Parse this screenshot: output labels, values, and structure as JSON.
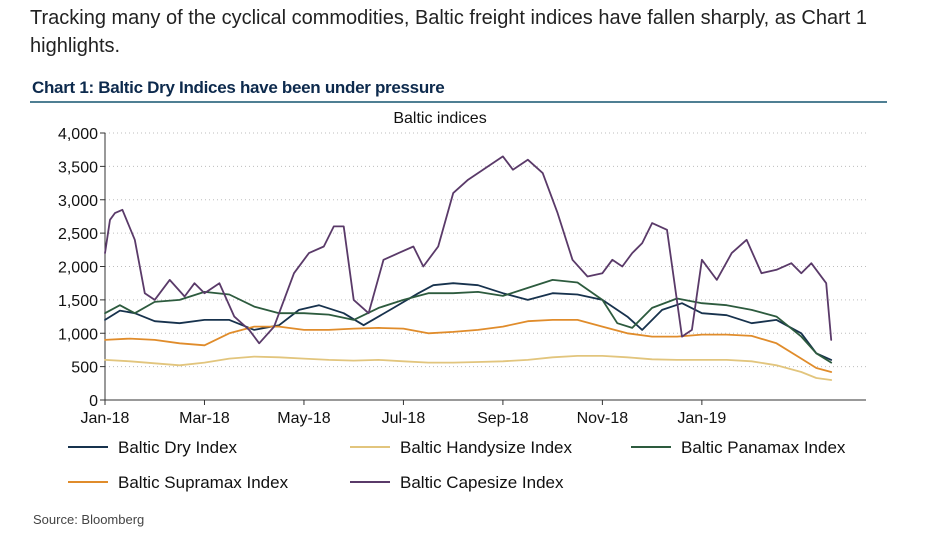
{
  "intro_text": "Tracking many of the cyclical commodities, Baltic freight indices have fallen sharply, as Chart 1 highlights.",
  "chart_heading": "Chart 1: Baltic Dry Indices have been under pressure",
  "source": "Source:  Bloomberg",
  "chart_data": {
    "type": "line",
    "title": "Baltic indices",
    "xlabel": "",
    "ylabel": "",
    "ylim": [
      0,
      4000
    ],
    "yticks": [
      0,
      500,
      1000,
      1500,
      2000,
      2500,
      3000,
      3500,
      4000
    ],
    "ytick_labels": [
      "0",
      "500",
      "1,000",
      "1,500",
      "2,000",
      "2,500",
      "3,000",
      "3,500",
      "4,000"
    ],
    "xlim": [
      0,
      15.3
    ],
    "xticks": [
      0,
      2,
      4,
      6,
      8,
      10,
      12
    ],
    "xtick_labels": [
      "Jan-18",
      "Mar-18",
      "May-18",
      "Jul-18",
      "Sep-18",
      "Nov-18",
      "Jan-19"
    ],
    "grid": "horizontal-dotted",
    "legend_position": "bottom",
    "series": [
      {
        "name": "Baltic Dry Index",
        "color": "#17324d",
        "x": [
          0,
          0.3,
          0.6,
          1.0,
          1.5,
          2.0,
          2.5,
          3.0,
          3.5,
          3.9,
          4.3,
          4.8,
          5.2,
          5.8,
          6.3,
          6.6,
          7.0,
          7.5,
          8.0,
          8.5,
          9.0,
          9.5,
          10.0,
          10.5,
          10.8,
          11.2,
          11.6,
          12.0,
          12.5,
          13.0,
          13.5,
          14.0,
          14.3,
          14.6
        ],
        "values": [
          1200,
          1340,
          1300,
          1180,
          1150,
          1200,
          1200,
          1050,
          1120,
          1350,
          1420,
          1300,
          1120,
          1380,
          1600,
          1720,
          1750,
          1720,
          1600,
          1500,
          1600,
          1580,
          1500,
          1250,
          1050,
          1350,
          1450,
          1300,
          1270,
          1150,
          1200,
          1000,
          700,
          600
        ]
      },
      {
        "name": "Baltic Handysize Index",
        "color": "#e2c57d",
        "x": [
          0,
          0.5,
          1.0,
          1.5,
          2.0,
          2.5,
          3.0,
          3.5,
          4.0,
          4.5,
          5.0,
          5.5,
          6.0,
          6.5,
          7.0,
          7.5,
          8.0,
          8.5,
          9.0,
          9.5,
          10.0,
          10.5,
          11.0,
          11.5,
          12.0,
          12.5,
          13.0,
          13.5,
          14.0,
          14.3,
          14.6
        ],
        "values": [
          600,
          580,
          550,
          520,
          560,
          620,
          650,
          640,
          620,
          600,
          590,
          600,
          580,
          560,
          560,
          570,
          580,
          600,
          640,
          660,
          660,
          640,
          610,
          600,
          600,
          600,
          580,
          520,
          420,
          330,
          300
        ]
      },
      {
        "name": "Baltic Panamax Index",
        "color": "#2d5b3e",
        "x": [
          0,
          0.3,
          0.6,
          1.0,
          1.5,
          2.0,
          2.5,
          3.0,
          3.5,
          4.0,
          4.5,
          5.0,
          5.5,
          6.0,
          6.5,
          7.0,
          7.5,
          8.0,
          8.5,
          9.0,
          9.5,
          10.0,
          10.3,
          10.6,
          11.0,
          11.5,
          12.0,
          12.5,
          13.0,
          13.5,
          14.0,
          14.3,
          14.6
        ],
        "values": [
          1300,
          1420,
          1300,
          1470,
          1500,
          1620,
          1580,
          1400,
          1300,
          1300,
          1280,
          1200,
          1380,
          1500,
          1600,
          1600,
          1620,
          1560,
          1680,
          1800,
          1760,
          1500,
          1150,
          1080,
          1380,
          1520,
          1450,
          1420,
          1350,
          1250,
          950,
          700,
          560
        ]
      },
      {
        "name": "Baltic Supramax Index",
        "color": "#e08c2b",
        "x": [
          0,
          0.5,
          1.0,
          1.5,
          2.0,
          2.5,
          3.0,
          3.5,
          4.0,
          4.5,
          5.0,
          5.5,
          6.0,
          6.5,
          7.0,
          7.5,
          8.0,
          8.5,
          9.0,
          9.5,
          10.0,
          10.5,
          11.0,
          11.5,
          12.0,
          12.5,
          13.0,
          13.5,
          14.0,
          14.3,
          14.6
        ],
        "values": [
          900,
          920,
          900,
          850,
          820,
          1000,
          1100,
          1100,
          1050,
          1050,
          1070,
          1080,
          1070,
          1000,
          1020,
          1050,
          1100,
          1180,
          1200,
          1200,
          1100,
          1000,
          950,
          950,
          980,
          980,
          960,
          850,
          620,
          480,
          420
        ]
      },
      {
        "name": "Baltic Capesize Index",
        "color": "#5a3a69",
        "x": [
          0,
          0.1,
          0.2,
          0.35,
          0.6,
          0.8,
          1.0,
          1.3,
          1.6,
          1.8,
          2.0,
          2.3,
          2.6,
          2.9,
          3.1,
          3.4,
          3.8,
          4.1,
          4.4,
          4.6,
          4.8,
          5.0,
          5.3,
          5.6,
          5.9,
          6.2,
          6.4,
          6.7,
          7.0,
          7.3,
          7.6,
          8.0,
          8.2,
          8.5,
          8.8,
          9.1,
          9.4,
          9.7,
          10.0,
          10.2,
          10.4,
          10.6,
          10.8,
          11.0,
          11.3,
          11.6,
          11.8,
          12.0,
          12.3,
          12.6,
          12.9,
          13.2,
          13.5,
          13.8,
          14.0,
          14.2,
          14.5,
          14.6
        ],
        "values": [
          2200,
          2700,
          2800,
          2850,
          2400,
          1600,
          1500,
          1800,
          1550,
          1750,
          1600,
          1750,
          1250,
          1050,
          850,
          1100,
          1900,
          2200,
          2300,
          2600,
          2600,
          1500,
          1300,
          2100,
          2200,
          2300,
          2000,
          2300,
          3100,
          3300,
          3450,
          3650,
          3450,
          3600,
          3400,
          2800,
          2100,
          1850,
          1900,
          2100,
          2000,
          2200,
          2350,
          2650,
          2550,
          950,
          1050,
          2100,
          1800,
          2200,
          2400,
          1900,
          1950,
          2050,
          1900,
          2050,
          1750,
          900
        ]
      }
    ]
  }
}
